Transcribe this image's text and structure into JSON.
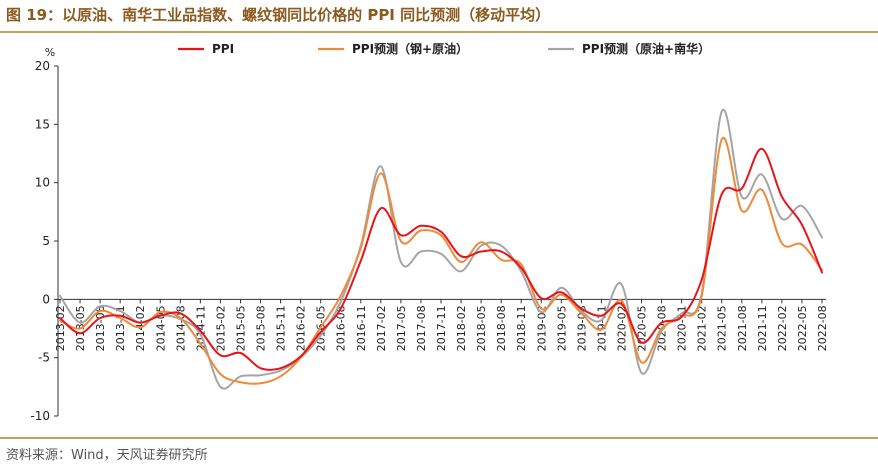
{
  "figure": {
    "title": "图 19：以原油、南华工业品指数、螺纹钢同比价格的 PPI 同比预测（移动平均）",
    "source": "资料来源：Wind，天风证券研究所"
  },
  "chart_data": {
    "type": "line",
    "unit_label": "%",
    "ylim": [
      -10,
      20
    ],
    "yticks": [
      -10,
      -5,
      0,
      5,
      10,
      15,
      20
    ],
    "grid": false,
    "legend_position": "top",
    "x": [
      "2013-02",
      "2013-05",
      "2013-08",
      "2013-11",
      "2014-02",
      "2014-05",
      "2014-08",
      "2014-11",
      "2015-02",
      "2015-05",
      "2015-08",
      "2015-11",
      "2016-02",
      "2016-05",
      "2016-08",
      "2016-11",
      "2017-02",
      "2017-05",
      "2017-08",
      "2017-11",
      "2018-02",
      "2018-05",
      "2018-08",
      "2018-11",
      "2019-02",
      "2019-05",
      "2019-08",
      "2019-11",
      "2020-02",
      "2020-05",
      "2020-08",
      "2020-11",
      "2021-02",
      "2021-05",
      "2021-08",
      "2021-11",
      "2022-02",
      "2022-05",
      "2022-08"
    ],
    "series": [
      {
        "name": "PPI",
        "color": "#e8141a",
        "values": [
          -1.6,
          -2.9,
          -1.6,
          -1.4,
          -2.0,
          -1.4,
          -1.2,
          -2.7,
          -4.8,
          -4.6,
          -5.9,
          -5.9,
          -4.9,
          -2.8,
          -0.8,
          3.3,
          7.8,
          5.5,
          6.3,
          5.8,
          3.7,
          4.1,
          4.1,
          2.7,
          0.1,
          0.6,
          -0.8,
          -1.4,
          -0.4,
          -3.7,
          -2.0,
          -1.5,
          1.7,
          9.0,
          9.5,
          12.9,
          8.8,
          6.4,
          2.3
        ]
      },
      {
        "name": "PPI预测（钢+原油）",
        "color": "#ee8a3a",
        "values": [
          -1.8,
          -2.5,
          -1.0,
          -1.6,
          -2.4,
          -1.1,
          -1.6,
          -3.8,
          -6.4,
          -7.1,
          -7.2,
          -6.6,
          -5.0,
          -2.4,
          0.3,
          4.4,
          10.8,
          5.0,
          5.9,
          5.5,
          3.2,
          4.9,
          3.4,
          3.0,
          -0.8,
          0.4,
          -1.2,
          -2.6,
          -0.1,
          -5.4,
          -2.5,
          -1.5,
          0.3,
          13.7,
          7.6,
          9.4,
          4.8,
          4.7,
          2.5
        ]
      },
      {
        "name": "PPI预测（原油+南华）",
        "color": "#a5a5a5",
        "values": [
          0.3,
          -2.0,
          -0.6,
          -1.0,
          -2.0,
          -1.4,
          -1.7,
          -3.0,
          -7.5,
          -6.6,
          -6.5,
          -6.1,
          -5.0,
          -3.1,
          -0.2,
          4.6,
          11.4,
          3.2,
          4.1,
          3.9,
          2.4,
          4.6,
          4.6,
          2.4,
          -1.1,
          1.0,
          -1.0,
          -1.8,
          1.3,
          -6.3,
          -2.7,
          -1.2,
          0.5,
          16.1,
          8.8,
          10.7,
          6.9,
          8.0,
          5.3
        ]
      }
    ]
  }
}
